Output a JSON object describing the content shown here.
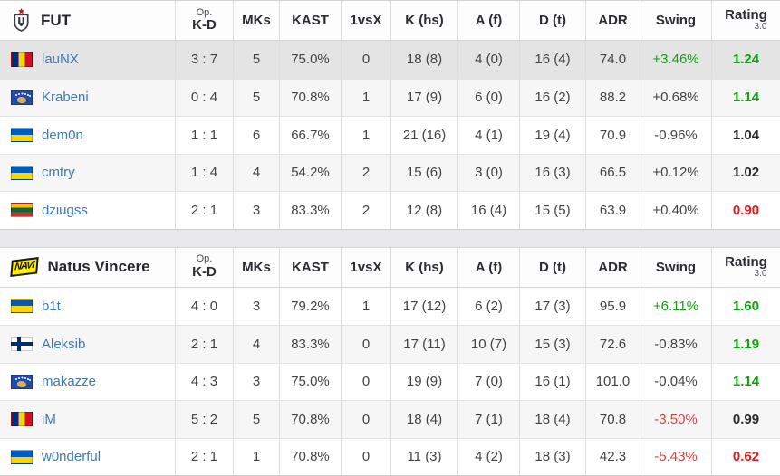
{
  "columns": [
    {
      "key": "kd",
      "label": "K-D",
      "sup": "Op."
    },
    {
      "key": "mks",
      "label": "MKs"
    },
    {
      "key": "kast",
      "label": "KAST"
    },
    {
      "key": "vsx",
      "label": "1vsX"
    },
    {
      "key": "khs",
      "label": "K (hs)"
    },
    {
      "key": "af",
      "label": "A (f)"
    },
    {
      "key": "dt",
      "label": "D (t)"
    },
    {
      "key": "adr",
      "label": "ADR"
    },
    {
      "key": "swing",
      "label": "Swing"
    },
    {
      "key": "rating",
      "label": "Rating",
      "sub": "3.0"
    }
  ],
  "colors": {
    "positive": "#0fa30f",
    "swing-negative": "#dc4040",
    "rating-negative": "#e51b1b",
    "neutral-text": "#434343",
    "dark-text": "#2c2c2c",
    "link": "#3d7ab5",
    "stripe": "#f6f6f6",
    "highlight": "#e4e4e4"
  },
  "navi_logo_text": "NAVI",
  "teams": [
    {
      "name": "FUT",
      "logo": "fut-shield-logo",
      "players": [
        {
          "nick": "lauNX",
          "country": "romania",
          "flag": "ro",
          "highlight": true,
          "kd": "3 : 7",
          "mks": "5",
          "kast": "75.0%",
          "vsx": "0",
          "khs": "18 (8)",
          "af": "4 (0)",
          "dt": "16 (4)",
          "adr": "74.0",
          "swing": "+3.46%",
          "swing_tone": "green",
          "rating": "1.24",
          "rating_tone": "green"
        },
        {
          "nick": "Krabeni",
          "country": "kosovo",
          "flag": "xk",
          "highlight": false,
          "kd": "0 : 4",
          "mks": "5",
          "kast": "70.8%",
          "vsx": "1",
          "khs": "17 (9)",
          "af": "6 (0)",
          "dt": "16 (2)",
          "adr": "88.2",
          "swing": "+0.68%",
          "swing_tone": "neutral",
          "rating": "1.14",
          "rating_tone": "green"
        },
        {
          "nick": "dem0n",
          "country": "ukraine",
          "flag": "ua",
          "highlight": false,
          "kd": "1 : 1",
          "mks": "6",
          "kast": "66.7%",
          "vsx": "1",
          "khs": "21 (16)",
          "af": "4 (1)",
          "dt": "19 (4)",
          "adr": "70.9",
          "swing": "-0.96%",
          "swing_tone": "neutral",
          "rating": "1.04",
          "rating_tone": "dark"
        },
        {
          "nick": "cmtry",
          "country": "ukraine",
          "flag": "ua",
          "highlight": false,
          "kd": "1 : 4",
          "mks": "4",
          "kast": "54.2%",
          "vsx": "2",
          "khs": "15 (6)",
          "af": "3 (0)",
          "dt": "16 (3)",
          "adr": "66.5",
          "swing": "+0.12%",
          "swing_tone": "neutral",
          "rating": "1.02",
          "rating_tone": "dark"
        },
        {
          "nick": "dziugss",
          "country": "lithuania",
          "flag": "lt",
          "highlight": false,
          "kd": "2 : 1",
          "mks": "3",
          "kast": "83.3%",
          "vsx": "2",
          "khs": "12 (8)",
          "af": "16 (4)",
          "dt": "15 (5)",
          "adr": "63.9",
          "swing": "+0.40%",
          "swing_tone": "neutral",
          "rating": "0.90",
          "rating_tone": "red"
        }
      ]
    },
    {
      "name": "Natus Vincere",
      "logo": "navi-logo",
      "players": [
        {
          "nick": "b1t",
          "country": "ukraine",
          "flag": "ua",
          "highlight": false,
          "kd": "4 : 0",
          "mks": "3",
          "kast": "79.2%",
          "vsx": "1",
          "khs": "17 (12)",
          "af": "6 (2)",
          "dt": "17 (3)",
          "adr": "95.9",
          "swing": "+6.11%",
          "swing_tone": "green",
          "rating": "1.60",
          "rating_tone": "green"
        },
        {
          "nick": "Aleksib",
          "country": "finland",
          "flag": "fi",
          "highlight": false,
          "kd": "2 : 1",
          "mks": "4",
          "kast": "83.3%",
          "vsx": "0",
          "khs": "17 (11)",
          "af": "10 (7)",
          "dt": "15 (3)",
          "adr": "72.6",
          "swing": "-0.83%",
          "swing_tone": "neutral",
          "rating": "1.19",
          "rating_tone": "green"
        },
        {
          "nick": "makazze",
          "country": "kosovo",
          "flag": "xk",
          "highlight": false,
          "kd": "4 : 3",
          "mks": "3",
          "kast": "75.0%",
          "vsx": "0",
          "khs": "19 (9)",
          "af": "7 (0)",
          "dt": "16 (1)",
          "adr": "101.0",
          "swing": "-0.04%",
          "swing_tone": "neutral",
          "rating": "1.14",
          "rating_tone": "green"
        },
        {
          "nick": "iM",
          "country": "romania",
          "flag": "ro",
          "highlight": false,
          "kd": "5 : 2",
          "mks": "5",
          "kast": "70.8%",
          "vsx": "0",
          "khs": "18 (4)",
          "af": "7 (1)",
          "dt": "18 (4)",
          "adr": "70.8",
          "swing": "-3.50%",
          "swing_tone": "red",
          "rating": "0.99",
          "rating_tone": "dark"
        },
        {
          "nick": "w0nderful",
          "country": "ukraine",
          "flag": "ua",
          "highlight": false,
          "kd": "2 : 1",
          "mks": "1",
          "kast": "70.8%",
          "vsx": "0",
          "khs": "11 (3)",
          "af": "4 (2)",
          "dt": "18 (3)",
          "adr": "42.3",
          "swing": "-5.43%",
          "swing_tone": "red",
          "rating": "0.62",
          "rating_tone": "red"
        }
      ]
    }
  ]
}
